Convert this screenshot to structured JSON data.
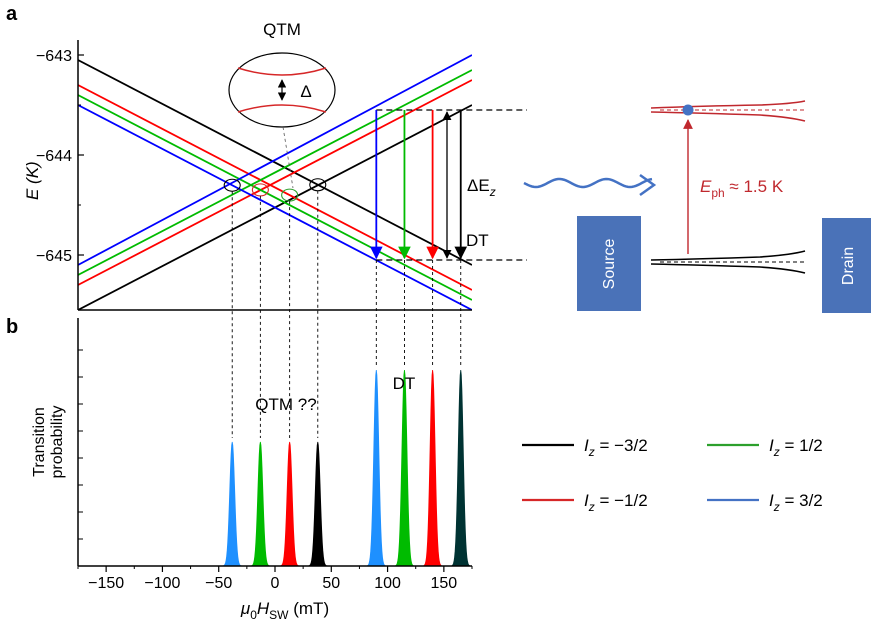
{
  "panels": {
    "a": "a",
    "b": "b"
  },
  "chart_data": [
    {
      "type": "line",
      "panel": "a",
      "ylabel": "E (K)",
      "ylim": [
        -645.55,
        -642.85
      ],
      "xlim": [
        -175,
        175
      ],
      "yticks": [
        "−643",
        "−644",
        "−645"
      ],
      "ytick_values": [
        -643,
        -644,
        -645
      ],
      "series": [
        {
          "name": "I_z = −3/2",
          "color": "#000000",
          "lines": [
            {
              "from": [
                -175,
                -643.05
              ],
              "to": [
                175,
                -645.1
              ]
            },
            {
              "from": [
                -175,
                -645.55
              ],
              "to": [
                175,
                -643.5
              ]
            }
          ]
        },
        {
          "name": "I_z = −1/2",
          "color": "#ff0000",
          "lines": [
            {
              "from": [
                -175,
                -643.3
              ],
              "to": [
                175,
                -645.35
              ]
            },
            {
              "from": [
                -175,
                -645.3
              ],
              "to": [
                175,
                -643.25
              ]
            }
          ]
        },
        {
          "name": "I_z = 1/2",
          "color": "#00bb00",
          "lines": [
            {
              "from": [
                -175,
                -643.4
              ],
              "to": [
                175,
                -645.45
              ]
            },
            {
              "from": [
                -175,
                -645.2
              ],
              "to": [
                175,
                -643.15
              ]
            }
          ]
        },
        {
          "name": "I_z = 3/2",
          "color": "#0000ff",
          "lines": [
            {
              "from": [
                -175,
                -643.5
              ],
              "to": [
                175,
                -645.55
              ]
            },
            {
              "from": [
                -175,
                -645.1
              ],
              "to": [
                175,
                -643.0
              ]
            }
          ]
        }
      ],
      "crossings": [
        -38,
        -13,
        13,
        38
      ],
      "dt_arrows": [
        {
          "x": 90,
          "color": "#0000ff"
        },
        {
          "x": 115,
          "color": "#00bb00"
        },
        {
          "x": 140,
          "color": "#ff0000"
        },
        {
          "x": 165,
          "color": "#000000"
        }
      ],
      "dt_levels": [
        -643.55,
        -645.05
      ],
      "annotations": {
        "qtm": "QTM",
        "delta": "Δ",
        "delta_ez": "ΔE",
        "delta_ez_sub": "z",
        "dt": "DT"
      }
    },
    {
      "type": "bar",
      "panel": "b",
      "xlabel": "μ0HSW (mT)",
      "ylabel_line1": "Transition",
      "ylabel_line2": "probability",
      "xlim": [
        -175,
        175
      ],
      "xticks": [
        -150,
        -100,
        -50,
        0,
        50,
        100,
        150
      ],
      "xtick_labels": [
        "−150",
        "−100",
        "−50",
        "0",
        "50",
        "100",
        "150"
      ],
      "ylim": [
        0,
        1
      ],
      "peaks": [
        {
          "x": -38,
          "height": 0.5,
          "color": "#1e90ff"
        },
        {
          "x": -13,
          "height": 0.5,
          "color": "#00bb00"
        },
        {
          "x": 13,
          "height": 0.5,
          "color": "#ff0000"
        },
        {
          "x": 38,
          "height": 0.5,
          "color": "#000000"
        },
        {
          "x": 90,
          "height": 0.79,
          "color": "#1e90ff"
        },
        {
          "x": 115,
          "height": 0.79,
          "color": "#00bb00"
        },
        {
          "x": 140,
          "height": 0.79,
          "color": "#ff0000"
        },
        {
          "x": 165,
          "height": 0.79,
          "color": "#003333"
        }
      ],
      "annotations": {
        "qtm": "QTM ??",
        "dt": "DT"
      }
    }
  ],
  "legend": [
    {
      "label": "I",
      "sub": "z",
      "value": " = −3/2",
      "color": "#000000"
    },
    {
      "label": "I",
      "sub": "z",
      "value": " = 1/2",
      "color": "#2ca02c"
    },
    {
      "label": "I",
      "sub": "z",
      "value": " = −1/2",
      "color": "#d62728"
    },
    {
      "label": "I",
      "sub": "z",
      "value": " = 3/2",
      "color": "#4472c4"
    }
  ],
  "schematic": {
    "source": "Source",
    "drain": "Drain",
    "eph": "E",
    "eph_sub": "ph",
    "eph_value": " ≈ 1.5 K",
    "box_color": "#4a72b8",
    "photon_color": "#4472c4",
    "level_color": "#c0282e"
  }
}
